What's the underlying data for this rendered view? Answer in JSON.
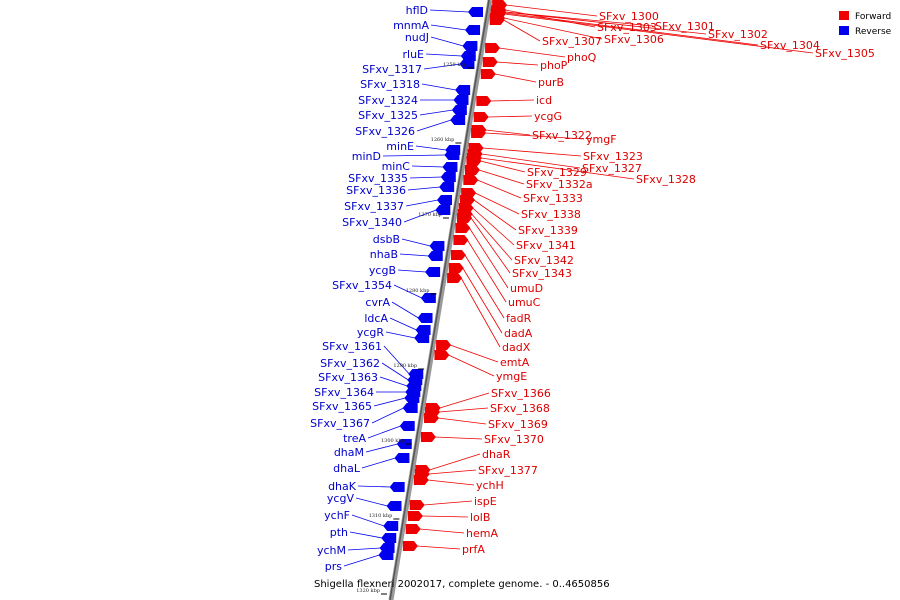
{
  "title": "Shigella flexneri 2002017, complete genome. - 0..4650856",
  "legend": {
    "forward": {
      "label": "Forward",
      "color": "#ee0000"
    },
    "reverse": {
      "label": "Reverse",
      "color": "#0000ee"
    }
  },
  "ticks": [
    "1250 kbp",
    "1260 kbp",
    "1270 kbp",
    "1280 kbp",
    "1290 kbp",
    "1300 kbp",
    "1310 kbp",
    "1320 kbp"
  ],
  "forward_genes": [
    "SFxv_1300",
    "SFxv_1303",
    "SFxv_1301",
    "SFxv_1302",
    "SFxv_1304",
    "SFxv_1305",
    "SFxv_1306",
    "SFxv_1307",
    "phoQ",
    "phoP",
    "purB",
    "icd",
    "ycgG",
    "SFxv_1322",
    "ymgF",
    "SFxv_1323",
    "SFxv_1327",
    "SFxv_1328",
    "SFxv_1329",
    "SFxv_1332a",
    "SFxv_1333",
    "SFxv_1338",
    "SFxv_1339",
    "SFxv_1341",
    "SFxv_1342",
    "SFxv_1343",
    "umuD",
    "umuC",
    "fadR",
    "dadA",
    "dadX",
    "emtA",
    "ymgE",
    "SFxv_1366",
    "SFxv_1368",
    "SFxv_1369",
    "SFxv_1370",
    "dhaR",
    "SFxv_1377",
    "ychH",
    "ispE",
    "lolB",
    "hemA",
    "prfA"
  ],
  "reverse_genes": [
    "hflD",
    "mnmA",
    "nudJ",
    "rluE",
    "SFxv_1317",
    "SFxv_1318",
    "SFxv_1324",
    "SFxv_1325",
    "SFxv_1326",
    "minE",
    "minD",
    "minC",
    "SFxv_1335",
    "SFxv_1336",
    "SFxv_1337",
    "SFxv_1340",
    "dsbB",
    "nhaB",
    "ycgB",
    "SFxv_1354",
    "cvrA",
    "ldcA",
    "ycgR",
    "SFxv_1361",
    "SFxv_1362",
    "SFxv_1363",
    "SFxv_1364",
    "SFxv_1365",
    "SFxv_1367",
    "treA",
    "dhaM",
    "dhaL",
    "dhaK",
    "ycgV",
    "ychF",
    "pth",
    "ychM",
    "prs"
  ]
}
